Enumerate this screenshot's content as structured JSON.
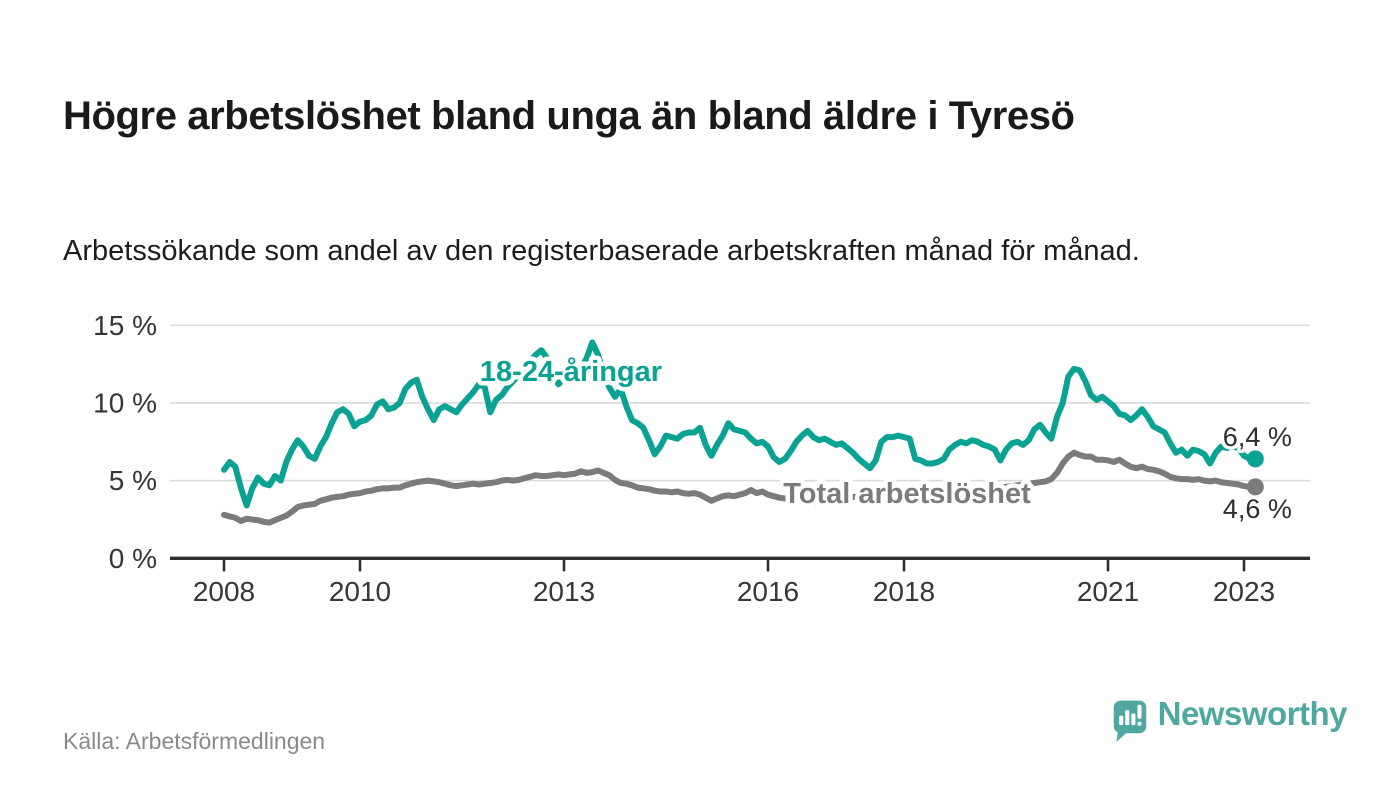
{
  "header": {
    "title": "Högre arbetslöshet bland unga än bland äldre i Tyresö",
    "subtitle": "Arbetssökande som andel av den registerbaserade arbetskraften månad för månad."
  },
  "footer": {
    "source": "Källa: Arbetsförmedlingen",
    "logo_text": "Newsworthy"
  },
  "colors": {
    "accent_teal": "#0aa293",
    "series_gray": "#7b7b7b",
    "logo_teal": "#4fa8a0",
    "grid": "#dadada",
    "axis": "#2f2f2f",
    "axis_text": "#363636",
    "end_label_text": "#2e2e2e"
  },
  "chart_data": {
    "type": "line",
    "title": "Högre arbetslöshet bland unga än bland äldre i Tyresö",
    "subtitle": "Arbetssökande som andel av den registerbaserade arbetskraften månad för månad.",
    "x_unit": "month",
    "x_start": "2008-01",
    "x_end": "2023-03",
    "ylim": [
      0,
      15
    ],
    "grid": "horizontal",
    "legend_position": "inline-labels",
    "y_ticks": [
      {
        "label": "0 %",
        "v": 0
      },
      {
        "label": "5 %",
        "v": 5
      },
      {
        "label": "10 %",
        "v": 10
      },
      {
        "label": "15 %",
        "v": 15
      }
    ],
    "x_ticks": [
      {
        "label": "2008",
        "m": 0
      },
      {
        "label": "2010",
        "m": 24
      },
      {
        "label": "2013",
        "m": 60
      },
      {
        "label": "2016",
        "m": 96
      },
      {
        "label": "2018",
        "m": 120
      },
      {
        "label": "2021",
        "m": 156
      },
      {
        "label": "2023",
        "m": 180
      }
    ],
    "series": [
      {
        "name": "18-24-åringar",
        "color": "#0aa293",
        "end_label": "6,4 %",
        "values": [
          5.7,
          6.2,
          5.9,
          4.5,
          3.4,
          4.5,
          5.2,
          4.8,
          4.7,
          5.3,
          5.0,
          6.2,
          7.0,
          7.6,
          7.2,
          6.6,
          6.4,
          7.2,
          7.8,
          8.7,
          9.4,
          9.6,
          9.3,
          8.5,
          8.8,
          8.9,
          9.2,
          9.9,
          10.1,
          9.6,
          9.7,
          10.0,
          10.9,
          11.3,
          11.5,
          10.4,
          9.6,
          8.9,
          9.6,
          9.8,
          9.6,
          9.4,
          9.9,
          10.3,
          10.7,
          11.2,
          11.0,
          9.4,
          10.2,
          10.5,
          11.0,
          11.4,
          11.8,
          12.2,
          12.7,
          13.1,
          13.4,
          12.9,
          11.9,
          11.2,
          11.6,
          12.1,
          12.4,
          12.2,
          12.9,
          13.9,
          13.1,
          11.9,
          11.0,
          10.4,
          10.9,
          9.8,
          8.9,
          8.7,
          8.4,
          7.6,
          6.7,
          7.2,
          7.9,
          7.8,
          7.7,
          8.0,
          8.1,
          8.1,
          8.4,
          7.3,
          6.6,
          7.3,
          7.9,
          8.7,
          8.3,
          8.2,
          8.1,
          7.7,
          7.4,
          7.5,
          7.2,
          6.5,
          6.2,
          6.4,
          6.9,
          7.5,
          7.9,
          8.2,
          7.8,
          7.6,
          7.7,
          7.5,
          7.3,
          7.4,
          7.1,
          6.8,
          6.4,
          6.1,
          5.8,
          6.3,
          7.5,
          7.8,
          7.8,
          7.9,
          7.8,
          7.7,
          6.4,
          6.3,
          6.1,
          6.1,
          6.2,
          6.4,
          7.0,
          7.3,
          7.5,
          7.4,
          7.6,
          7.5,
          7.3,
          7.2,
          7.0,
          6.3,
          7.0,
          7.4,
          7.5,
          7.3,
          7.6,
          8.3,
          8.6,
          8.1,
          7.7,
          9.1,
          10.0,
          11.7,
          12.2,
          12.1,
          11.4,
          10.5,
          10.2,
          10.4,
          10.1,
          9.8,
          9.3,
          9.2,
          8.9,
          9.2,
          9.6,
          9.1,
          8.5,
          8.3,
          8.1,
          7.4,
          6.8,
          7.0,
          6.6,
          7.0,
          6.9,
          6.7,
          6.1,
          6.8,
          7.2,
          7.1,
          7.2,
          7.1,
          6.6,
          6.4,
          6.4
        ]
      },
      {
        "name": "Total arbetslöshet",
        "color": "#7b7b7b",
        "end_label": "4,6 %",
        "values": [
          2.8,
          2.7,
          2.6,
          2.4,
          2.55,
          2.5,
          2.45,
          2.35,
          2.3,
          2.45,
          2.6,
          2.75,
          3.0,
          3.3,
          3.4,
          3.45,
          3.5,
          3.7,
          3.8,
          3.9,
          3.95,
          4.0,
          4.1,
          4.15,
          4.2,
          4.3,
          4.35,
          4.45,
          4.5,
          4.5,
          4.55,
          4.55,
          4.7,
          4.8,
          4.9,
          4.95,
          5.0,
          4.95,
          4.9,
          4.8,
          4.7,
          4.65,
          4.7,
          4.75,
          4.8,
          4.75,
          4.8,
          4.85,
          4.9,
          5.0,
          5.05,
          5.0,
          5.05,
          5.15,
          5.25,
          5.35,
          5.3,
          5.3,
          5.35,
          5.4,
          5.35,
          5.4,
          5.45,
          5.6,
          5.5,
          5.55,
          5.65,
          5.5,
          5.35,
          5.05,
          4.85,
          4.8,
          4.7,
          4.55,
          4.5,
          4.45,
          4.35,
          4.3,
          4.3,
          4.25,
          4.3,
          4.2,
          4.15,
          4.2,
          4.1,
          3.9,
          3.7,
          3.85,
          4.0,
          4.05,
          4.0,
          4.1,
          4.2,
          4.4,
          4.2,
          4.3,
          4.1,
          4.0,
          3.9,
          3.85,
          3.8,
          3.7,
          3.75,
          3.7,
          3.6,
          3.6,
          3.75,
          3.8,
          3.9,
          3.95,
          4.0,
          3.95,
          3.95,
          4.0,
          4.0,
          4.0,
          4.05,
          4.1,
          4.1,
          4.15,
          4.2,
          4.15,
          4.1,
          4.1,
          4.15,
          4.2,
          4.25,
          4.2,
          4.25,
          4.3,
          4.35,
          4.4,
          4.45,
          4.4,
          4.45,
          4.5,
          4.55,
          4.5,
          4.6,
          4.65,
          4.7,
          4.75,
          4.8,
          4.85,
          4.9,
          4.95,
          5.1,
          5.5,
          6.1,
          6.55,
          6.8,
          6.65,
          6.55,
          6.55,
          6.35,
          6.35,
          6.3,
          6.2,
          6.35,
          6.1,
          5.9,
          5.8,
          5.9,
          5.75,
          5.7,
          5.6,
          5.45,
          5.25,
          5.15,
          5.1,
          5.1,
          5.05,
          5.1,
          5.0,
          4.95,
          5.0,
          4.9,
          4.85,
          4.8,
          4.75,
          4.65,
          4.6,
          4.6
        ]
      }
    ]
  }
}
